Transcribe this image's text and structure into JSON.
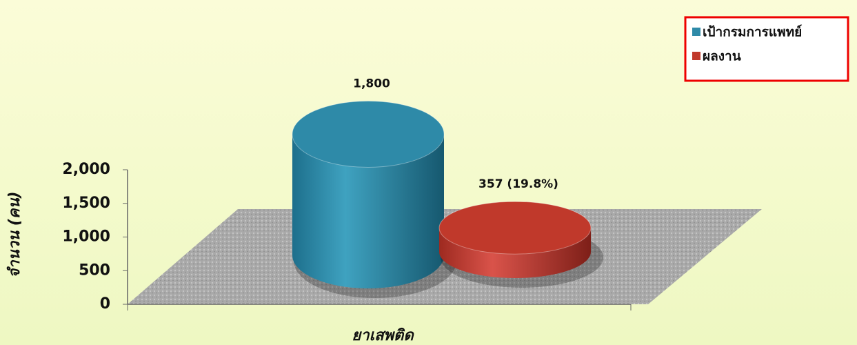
{
  "chart_data": {
    "type": "bar3d",
    "categories": [
      "ยาเสพติด"
    ],
    "series": [
      {
        "name": "เป้ากรมการแพทย์",
        "color": "#2e8aa8",
        "values": [
          1800
        ],
        "value_labels": [
          "1,800"
        ]
      },
      {
        "name": "ผลงาน",
        "color": "#c0392b",
        "values": [
          357
        ],
        "value_labels": [
          "357 (19.8%)"
        ]
      }
    ],
    "ylabel": "จำนวน (คน)",
    "ylim": [
      0,
      2000
    ],
    "yticks": [
      0,
      500,
      {
        "value": 1000,
        "label": "1,000"
      },
      {
        "value": 1500,
        "label": "1,500"
      },
      {
        "value": 2000,
        "label": "2,000"
      }
    ],
    "legend": "top-right"
  }
}
